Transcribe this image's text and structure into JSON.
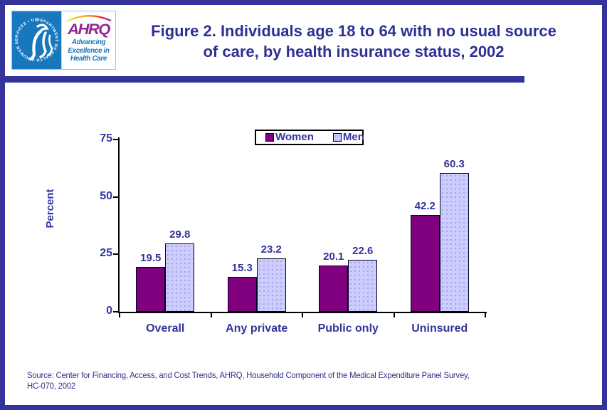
{
  "header": {
    "hhs_ring_text": "DEPARTMENT OF HEALTH & HUMAN SERVICES • USA",
    "ahrq_acronym": "AHRQ",
    "ahrq_tagline_lines": [
      "Advancing",
      "Excellence in",
      "Health Care"
    ]
  },
  "chart_data": {
    "type": "bar",
    "title": "Figure 2. Individuals age 18 to 64 with no usual source of care, by health insurance status, 2002",
    "title_lines": [
      "Figure 2. Individuals age 18 to 64 with no usual source",
      "of care, by health insurance status, 2002"
    ],
    "categories": [
      "Overall",
      "Any private",
      "Public only",
      "Uninsured"
    ],
    "series": [
      {
        "name": "Women",
        "color": "#800080",
        "values": [
          19.5,
          15.3,
          20.1,
          42.2
        ]
      },
      {
        "name": "Men",
        "color": "#CCCCFF",
        "values": [
          29.8,
          23.2,
          22.6,
          60.3
        ]
      }
    ],
    "xlabel": "",
    "ylabel": "Percent",
    "ylim": [
      0,
      75
    ],
    "yticks": [
      0,
      25,
      50,
      75
    ],
    "grid": false,
    "legend_position": "top-center",
    "data_labels": true,
    "colors": {
      "axis": "#000000",
      "tick_label": "#3333A6",
      "category_label": "#333399",
      "value_label": "#333399",
      "title": "#2E3192",
      "accent_bar": "#333399",
      "women_fill": "#800080",
      "men_fill": "#CCCCFF",
      "men_dot": "#9898D8"
    }
  },
  "footer": {
    "source_lines": [
      "Source: Center for Financing, Access, and Cost Trends, AHRQ, Household Component of the Medical Expenditure Panel Survey,",
      "HC-070, 2002"
    ]
  }
}
